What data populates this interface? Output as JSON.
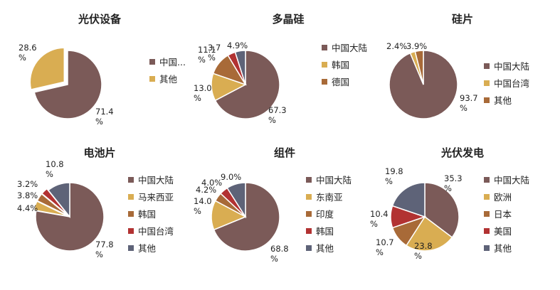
{
  "colors": {
    "brown": "#7b5a58",
    "gold": "#d9ad52",
    "rust": "#a86a38",
    "red": "#b23232",
    "slate": "#5e6378"
  },
  "chart_data": [
    {
      "type": "pie",
      "title": "光伏设备",
      "slices": [
        {
          "label": "中国...",
          "value": 71.4,
          "color": "#7b5a58",
          "label_line1": "71.4",
          "label_line2": "%"
        },
        {
          "label": "其他",
          "value": 28.6,
          "color": "#d9ad52",
          "label_line1": "28.6",
          "label_line2": "%"
        }
      ],
      "explode": 1
    },
    {
      "type": "pie",
      "title": "多晶硅",
      "slices": [
        {
          "label": "中国大陆",
          "value": 67.3,
          "color": "#7b5a58",
          "label_line1": "67.3",
          "label_line2": "%"
        },
        {
          "label": "韩国",
          "value": 13.0,
          "color": "#d9ad52",
          "label_line1": "13.0",
          "label_line2": "%"
        },
        {
          "label": "德国",
          "value": 11.1,
          "color": "#a86a38",
          "label_line1": "11.1",
          "label_line2": "%"
        },
        {
          "label": "",
          "value": 3.7,
          "color": "#b23232",
          "label_line1": "3.7",
          "label_line2": "%"
        },
        {
          "label": "",
          "value": 4.9,
          "color": "#5e6378",
          "label_line1": "4.9%",
          "label_line2": ""
        }
      ],
      "legend_labels": [
        "中国大陆",
        "韩国",
        "德国"
      ]
    },
    {
      "type": "pie",
      "title": "硅片",
      "slices": [
        {
          "label": "中国大陆",
          "value": 93.7,
          "color": "#7b5a58",
          "label_line1": "93.7",
          "label_line2": "%"
        },
        {
          "label": "中国台湾",
          "value": 2.4,
          "color": "#d9ad52",
          "label_line1": "2.4%",
          "label_line2": ""
        },
        {
          "label": "其他",
          "value": 3.9,
          "color": "#a86a38",
          "label_line1": "3.9%",
          "label_line2": ""
        }
      ]
    },
    {
      "type": "pie",
      "title": "电池片",
      "slices": [
        {
          "label": "中国大陆",
          "value": 77.8,
          "color": "#7b5a58",
          "label_line1": "77.8",
          "label_line2": "%"
        },
        {
          "label": "马来西亚",
          "value": 4.4,
          "color": "#d9ad52",
          "label_line1": "4.4%",
          "label_line2": ""
        },
        {
          "label": "韩国",
          "value": 3.8,
          "color": "#a86a38",
          "label_line1": "3.8%",
          "label_line2": ""
        },
        {
          "label": "中国台湾",
          "value": 3.2,
          "color": "#b23232",
          "label_line1": "3.2%",
          "label_line2": ""
        },
        {
          "label": "其他",
          "value": 10.8,
          "color": "#5e6378",
          "label_line1": "10.8",
          "label_line2": "%"
        }
      ]
    },
    {
      "type": "pie",
      "title": "组件",
      "slices": [
        {
          "label": "中国大陆",
          "value": 68.8,
          "color": "#7b5a58",
          "label_line1": "68.8",
          "label_line2": "%"
        },
        {
          "label": "东南亚",
          "value": 14.0,
          "color": "#d9ad52",
          "label_line1": "14.0",
          "label_line2": "%"
        },
        {
          "label": "印度",
          "value": 4.2,
          "color": "#a86a38",
          "label_line1": "4.2%",
          "label_line2": ""
        },
        {
          "label": "韩国",
          "value": 4.0,
          "color": "#b23232",
          "label_line1": "4.0%",
          "label_line2": ""
        },
        {
          "label": "其他",
          "value": 9.0,
          "color": "#5e6378",
          "label_line1": "9.0%",
          "label_line2": ""
        }
      ]
    },
    {
      "type": "pie",
      "title": "光伏发电",
      "slices": [
        {
          "label": "中国大陆",
          "value": 35.3,
          "color": "#7b5a58",
          "label_line1": "35.3",
          "label_line2": "%"
        },
        {
          "label": "欧洲",
          "value": 23.8,
          "color": "#d9ad52",
          "label_line1": "23.8",
          "label_line2": "%"
        },
        {
          "label": "日本",
          "value": 10.7,
          "color": "#a86a38",
          "label_line1": "10.7",
          "label_line2": "%"
        },
        {
          "label": "美国",
          "value": 10.4,
          "color": "#b23232",
          "label_line1": "10.4",
          "label_line2": "%"
        },
        {
          "label": "其他",
          "value": 19.8,
          "color": "#5e6378",
          "label_line1": "19.8",
          "label_line2": "%"
        }
      ]
    }
  ]
}
